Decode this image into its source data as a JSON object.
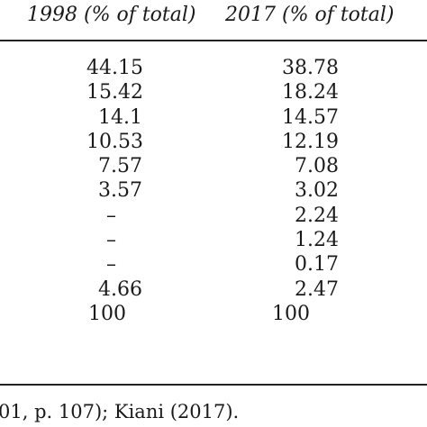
{
  "header": {
    "col1998": "1998 (% of total)",
    "col2017": "2017 (% of total)"
  },
  "rows1998": [
    "44.15",
    "15.42",
    "14.1",
    "10.53",
    "7.57",
    "3.57",
    "–",
    "–",
    "–",
    "4.66"
  ],
  "rows2017": [
    "38.78",
    "18.24",
    "14.57",
    "12.19",
    "7.08",
    "3.02",
    "2.24",
    "1.24",
    "0.17",
    "2.47"
  ],
  "total1998": "100",
  "total2017": "100",
  "source_note": "01, p. 107); Kiani (2017)."
}
